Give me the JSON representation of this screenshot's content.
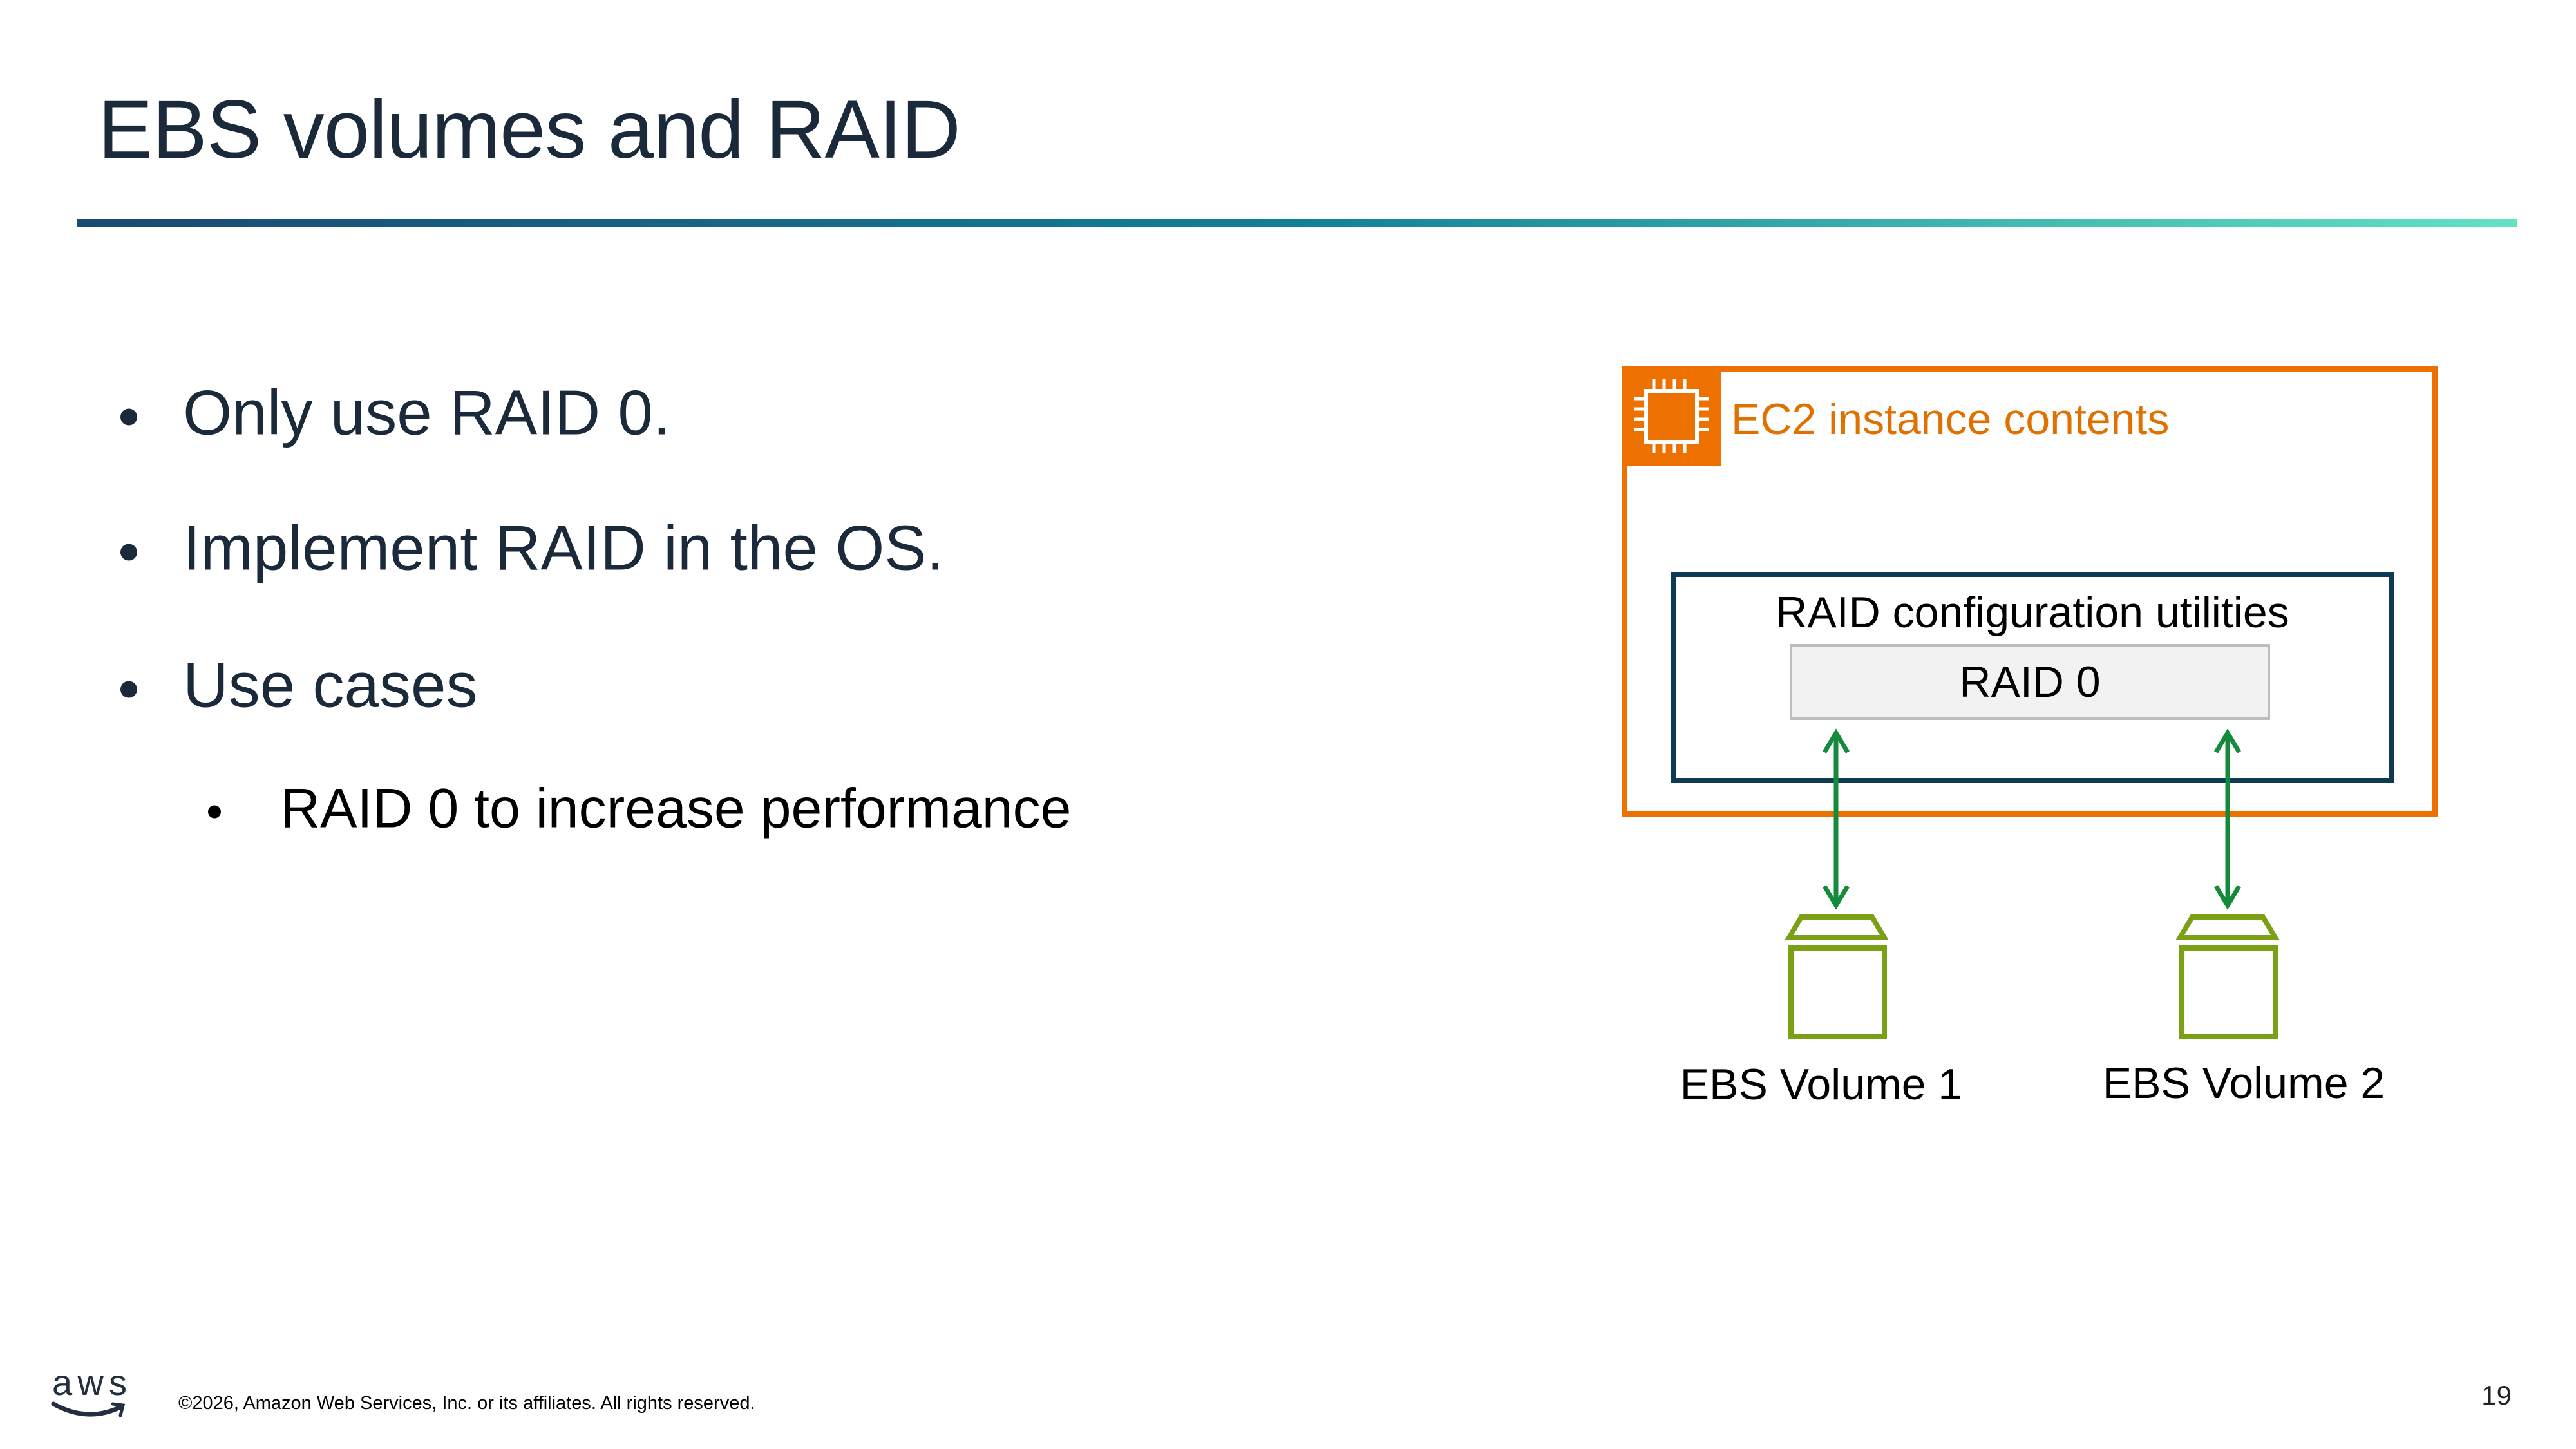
{
  "slide": {
    "title": "EBS volumes and RAID",
    "bullets": [
      {
        "text": "Only use RAID 0.",
        "level": 1
      },
      {
        "text": "Implement RAID in the OS.",
        "level": 1
      },
      {
        "text": "Use cases",
        "level": 1
      },
      {
        "text": "RAID 0 to increase performance",
        "level": 2
      }
    ]
  },
  "diagram": {
    "ec2_group_label": "EC2 instance contents",
    "ec2_icon": "ec2-chip-icon",
    "raid_utilities_label": "RAID configuration utilities",
    "raid_level_label": "RAID 0",
    "volumes": [
      {
        "label": "EBS Volume 1",
        "icon": "ebs-volume-icon"
      },
      {
        "label": "EBS Volume 2",
        "icon": "ebs-volume-icon"
      }
    ],
    "colors": {
      "ec2_orange": "#ed7100",
      "raid_box_border": "#0f3a55",
      "arrow_green": "#138a3c",
      "volume_green": "#7aa116"
    }
  },
  "footer": {
    "logo": "aws",
    "copyright": "©2026, Amazon Web Services, Inc. or its affiliates. All rights reserved.",
    "page_number": "19"
  }
}
